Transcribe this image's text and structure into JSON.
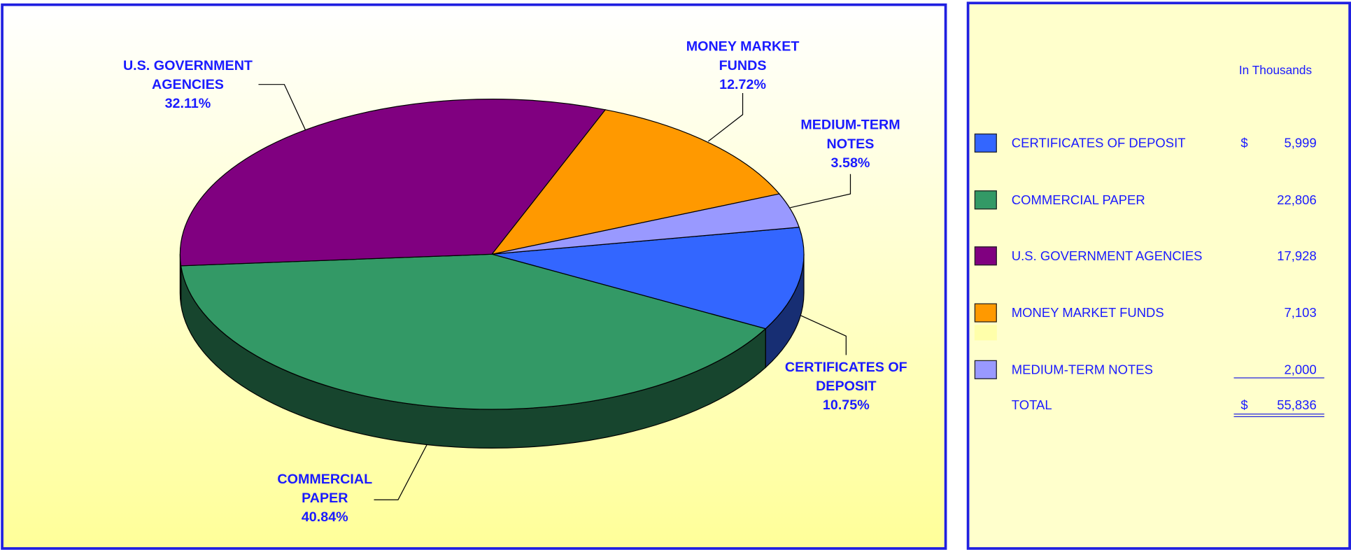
{
  "chart_data": {
    "type": "pie",
    "categories": [
      "CERTIFICATES OF DEPOSIT",
      "COMMERCIAL PAPER",
      "U.S. GOVERNMENT AGENCIES",
      "MONEY MARKET FUNDS",
      "MEDIUM-TERM NOTES"
    ],
    "values": [
      10.75,
      40.84,
      32.11,
      12.72,
      3.58
    ],
    "value_labels": [
      "10.75%",
      "40.84%",
      "32.11%",
      "12.72%",
      "3.58%"
    ],
    "colors": [
      "#3366ff",
      "#339966",
      "#800080",
      "#ff9900",
      "#9999ff"
    ]
  },
  "legend_table": {
    "unit_note": "In Thousands",
    "currency": "$",
    "amounts": [
      "5,999",
      "22,806",
      "17,928",
      "7,103",
      "2,000"
    ],
    "total_label": "TOTAL",
    "total": "55,836"
  }
}
